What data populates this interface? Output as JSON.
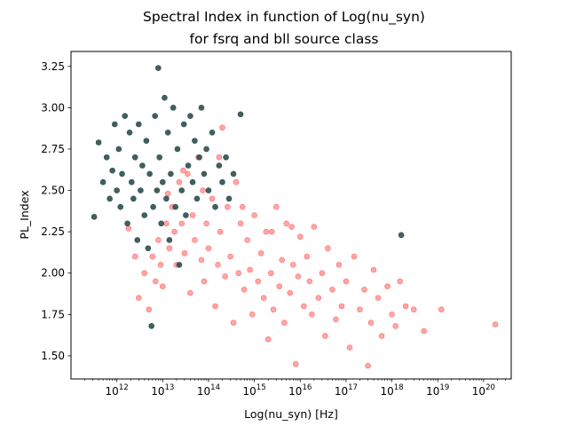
{
  "chart_data": {
    "type": "scatter",
    "title_lines": [
      "Spectral Index in function of Log(nu_syn)",
      "for fsrq and bll source class"
    ],
    "xlabel": "Log(nu_syn) [Hz]",
    "ylabel": "PL_Index",
    "x_scale": "log",
    "xlim": [
      100000000000.0,
      4e+20
    ],
    "ylim": [
      1.36,
      3.34
    ],
    "x_ticks": [
      {
        "base": "10",
        "exp": "12",
        "value": 1000000000000.0
      },
      {
        "base": "10",
        "exp": "13",
        "value": 10000000000000.0
      },
      {
        "base": "10",
        "exp": "14",
        "value": 100000000000000.0
      },
      {
        "base": "10",
        "exp": "15",
        "value": 1000000000000000.0
      },
      {
        "base": "10",
        "exp": "16",
        "value": 1e+16
      },
      {
        "base": "10",
        "exp": "17",
        "value": 1e+17
      },
      {
        "base": "10",
        "exp": "18",
        "value": 1e+18
      },
      {
        "base": "10",
        "exp": "19",
        "value": 1e+19
      },
      {
        "base": "10",
        "exp": "20",
        "value": 1e+20
      }
    ],
    "y_ticks": [
      "1.50",
      "1.75",
      "2.00",
      "2.25",
      "2.50",
      "2.75",
      "3.00",
      "3.25"
    ],
    "grid": false,
    "series": [
      {
        "color": "#ff0000",
        "alpha": 0.35,
        "points": [
          [
            1800000000000.0,
            2.27
          ],
          [
            2500000000000.0,
            2.1
          ],
          [
            3000000000000.0,
            1.85
          ],
          [
            4000000000000.0,
            2.0
          ],
          [
            5000000000000.0,
            1.78
          ],
          [
            6000000000000.0,
            2.1
          ],
          [
            7000000000000.0,
            1.95
          ],
          [
            8000000000000.0,
            2.2
          ],
          [
            9000000000000.0,
            2.05
          ],
          [
            10000000000000.0,
            1.92
          ],
          [
            12000000000000.0,
            2.3
          ],
          [
            14000000000000.0,
            2.15
          ],
          [
            16000000000000.0,
            2.4
          ],
          [
            18000000000000.0,
            2.25
          ],
          [
            20000000000000.0,
            2.05
          ],
          [
            23000000000000.0,
            2.55
          ],
          [
            26000000000000.0,
            2.3
          ],
          [
            30000000000000.0,
            2.12
          ],
          [
            35000000000000.0,
            2.6
          ],
          [
            40000000000000.0,
            1.88
          ],
          [
            45000000000000.0,
            2.35
          ],
          [
            50000000000000.0,
            2.2
          ],
          [
            60000000000000.0,
            2.7
          ],
          [
            70000000000000.0,
            2.08
          ],
          [
            80000000000000.0,
            1.95
          ],
          [
            90000000000000.0,
            2.3
          ],
          [
            100000000000000.0,
            2.15
          ],
          [
            120000000000000.0,
            2.45
          ],
          [
            140000000000000.0,
            1.8
          ],
          [
            160000000000000.0,
            2.05
          ],
          [
            180000000000000.0,
            2.25
          ],
          [
            200000000000000.0,
            2.88
          ],
          [
            230000000000000.0,
            1.98
          ],
          [
            260000000000000.0,
            2.4
          ],
          [
            300000000000000.0,
            2.1
          ],
          [
            350000000000000.0,
            1.7
          ],
          [
            400000000000000.0,
            2.55
          ],
          [
            450000000000000.0,
            2.0
          ],
          [
            500000000000000.0,
            2.3
          ],
          [
            600000000000000.0,
            1.9
          ],
          [
            700000000000000.0,
            2.2
          ],
          [
            800000000000000.0,
            2.02
          ],
          [
            900000000000000.0,
            1.75
          ],
          [
            1000000000000000.0,
            2.35
          ],
          [
            1200000000000000.0,
            1.95
          ],
          [
            1400000000000000.0,
            2.12
          ],
          [
            1600000000000000.0,
            1.85
          ],
          [
            1800000000000000.0,
            2.25
          ],
          [
            2000000000000000.0,
            1.6
          ],
          [
            2300000000000000.0,
            2.0
          ],
          [
            2600000000000000.0,
            1.78
          ],
          [
            3000000000000000.0,
            2.4
          ],
          [
            3500000000000000.0,
            1.92
          ],
          [
            4000000000000000.0,
            2.08
          ],
          [
            4500000000000000.0,
            1.7
          ],
          [
            5000000000000000.0,
            2.3
          ],
          [
            6000000000000000.0,
            1.88
          ],
          [
            7000000000000000.0,
            2.05
          ],
          [
            8000000000000000.0,
            1.45
          ],
          [
            9000000000000000.0,
            1.98
          ],
          [
            1e+16,
            2.22
          ],
          [
            1.2e+16,
            1.8
          ],
          [
            1.4e+16,
            2.1
          ],
          [
            1.6e+16,
            1.95
          ],
          [
            1.8e+16,
            1.75
          ],
          [
            2e+16,
            2.28
          ],
          [
            2.5e+16,
            1.85
          ],
          [
            3e+16,
            2.0
          ],
          [
            3.5e+16,
            1.62
          ],
          [
            4e+16,
            2.15
          ],
          [
            5e+16,
            1.9
          ],
          [
            6e+16,
            1.72
          ],
          [
            7e+16,
            2.05
          ],
          [
            8e+16,
            1.8
          ],
          [
            1e+17,
            1.95
          ],
          [
            1.2e+17,
            1.55
          ],
          [
            1.5e+17,
            2.1
          ],
          [
            2e+17,
            1.78
          ],
          [
            2.5e+17,
            1.9
          ],
          [
            3e+17,
            1.44
          ],
          [
            3.5e+17,
            1.7
          ],
          [
            4e+17,
            2.02
          ],
          [
            5e+17,
            1.85
          ],
          [
            6e+17,
            1.62
          ],
          [
            8e+17,
            1.92
          ],
          [
            1e+18,
            1.75
          ],
          [
            1.2e+18,
            1.68
          ],
          [
            1.5e+18,
            1.95
          ],
          [
            2e+18,
            1.8
          ],
          [
            3e+18,
            1.78
          ],
          [
            5e+18,
            1.65
          ],
          [
            1.2e+19,
            1.78
          ],
          [
            1.8e+20,
            1.69
          ],
          [
            13000000000000.0,
            2.48
          ],
          [
            28000000000000.0,
            2.62
          ],
          [
            75000000000000.0,
            2.5
          ],
          [
            170000000000000.0,
            2.7
          ],
          [
            550000000000000.0,
            2.4
          ],
          [
            2400000000000000.0,
            2.25
          ],
          [
            6500000000000000.0,
            2.28
          ]
        ]
      },
      {
        "color": "#2f4f4f",
        "alpha": 0.9,
        "points": [
          [
            320000000000.0,
            2.34
          ],
          [
            400000000000.0,
            2.79
          ],
          [
            500000000000.0,
            2.55
          ],
          [
            600000000000.0,
            2.7
          ],
          [
            700000000000.0,
            2.45
          ],
          [
            800000000000.0,
            2.62
          ],
          [
            900000000000.0,
            2.9
          ],
          [
            1000000000000.0,
            2.5
          ],
          [
            1100000000000.0,
            2.75
          ],
          [
            1200000000000.0,
            2.4
          ],
          [
            1300000000000.0,
            2.6
          ],
          [
            1500000000000.0,
            2.95
          ],
          [
            1700000000000.0,
            2.3
          ],
          [
            1900000000000.0,
            2.85
          ],
          [
            2100000000000.0,
            2.55
          ],
          [
            2300000000000.0,
            2.45
          ],
          [
            2500000000000.0,
            2.7
          ],
          [
            2800000000000.0,
            2.2
          ],
          [
            3000000000000.0,
            2.9
          ],
          [
            3300000000000.0,
            2.5
          ],
          [
            3600000000000.0,
            2.65
          ],
          [
            4000000000000.0,
            2.35
          ],
          [
            4400000000000.0,
            2.8
          ],
          [
            4800000000000.0,
            2.15
          ],
          [
            5200000000000.0,
            2.6
          ],
          [
            5700000000000.0,
            1.68
          ],
          [
            6200000000000.0,
            2.4
          ],
          [
            6800000000000.0,
            2.95
          ],
          [
            7500000000000.0,
            2.5
          ],
          [
            8000000000000.0,
            3.24
          ],
          [
            8500000000000.0,
            2.7
          ],
          [
            9300000000000.0,
            2.3
          ],
          [
            10000000000000.0,
            2.55
          ],
          [
            11000000000000.0,
            3.06
          ],
          [
            12000000000000.0,
            2.45
          ],
          [
            13000000000000.0,
            2.85
          ],
          [
            14000000000000.0,
            2.2
          ],
          [
            15000000000000.0,
            2.6
          ],
          [
            17000000000000.0,
            3.0
          ],
          [
            19000000000000.0,
            2.4
          ],
          [
            21000000000000.0,
            2.75
          ],
          [
            23000000000000.0,
            2.05
          ],
          [
            26000000000000.0,
            2.5
          ],
          [
            29000000000000.0,
            2.9
          ],
          [
            32000000000000.0,
            2.35
          ],
          [
            36000000000000.0,
            2.65
          ],
          [
            40000000000000.0,
            2.95
          ],
          [
            45000000000000.0,
            2.55
          ],
          [
            50000000000000.0,
            2.8
          ],
          [
            56000000000000.0,
            2.45
          ],
          [
            63000000000000.0,
            2.7
          ],
          [
            70000000000000.0,
            3.0
          ],
          [
            80000000000000.0,
            2.6
          ],
          [
            90000000000000.0,
            2.75
          ],
          [
            100000000000000.0,
            2.5
          ],
          [
            120000000000000.0,
            2.85
          ],
          [
            140000000000000.0,
            2.4
          ],
          [
            170000000000000.0,
            2.65
          ],
          [
            200000000000000.0,
            2.55
          ],
          [
            240000000000000.0,
            2.7
          ],
          [
            280000000000000.0,
            2.45
          ],
          [
            350000000000000.0,
            2.6
          ],
          [
            500000000000000.0,
            2.96
          ],
          [
            1.6e+18,
            2.23
          ]
        ]
      }
    ]
  }
}
